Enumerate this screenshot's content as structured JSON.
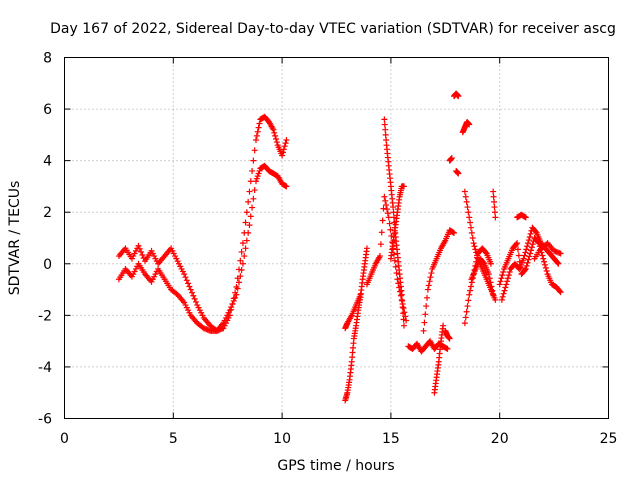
{
  "chart_data": {
    "type": "scatter",
    "title": "Day 167 of 2022, Sidereal Day-to-day VTEC variation (SDTVAR) for receiver ascg",
    "xlabel": "GPS time / hours",
    "ylabel": "SDTVAR / TECUs",
    "xlim": [
      0,
      25
    ],
    "ylim": [
      -6,
      8
    ],
    "xticks": [
      0,
      5,
      10,
      15,
      20,
      25
    ],
    "yticks": [
      -6,
      -4,
      -2,
      0,
      2,
      4,
      6,
      8
    ],
    "xtick_labels": [
      "0",
      "5",
      "10",
      "15",
      "20",
      "25"
    ],
    "ytick_labels": [
      "-6",
      "-4",
      "-2",
      "0",
      "2",
      "4",
      "6",
      "8"
    ],
    "grid": true,
    "marker": "+",
    "color": "#ff0000",
    "series": [
      {
        "name": "segment-1-upper",
        "x": [
          2.5,
          2.8,
          3.1,
          3.4,
          3.7,
          4.0,
          4.3,
          4.6,
          4.9,
          5.2,
          5.5,
          5.8,
          6.1,
          6.4,
          6.7,
          7.0,
          7.3,
          7.6,
          7.9,
          8.2,
          8.5,
          8.8,
          9.0,
          9.2,
          9.4,
          9.6,
          9.8,
          10.0,
          10.2
        ],
        "y": [
          0.3,
          0.6,
          0.2,
          0.7,
          0.1,
          0.5,
          0.0,
          0.3,
          0.6,
          0.1,
          -0.4,
          -1.0,
          -1.6,
          -2.1,
          -2.4,
          -2.6,
          -2.5,
          -2.0,
          -0.9,
          0.8,
          2.8,
          4.8,
          5.6,
          5.7,
          5.5,
          5.2,
          4.6,
          4.2,
          4.8
        ]
      },
      {
        "name": "segment-1-lower",
        "x": [
          2.5,
          2.8,
          3.1,
          3.4,
          3.7,
          4.0,
          4.3,
          4.6,
          4.9,
          5.2,
          5.5,
          5.8,
          6.1,
          6.4,
          6.7,
          7.0,
          7.3,
          7.6,
          7.9,
          8.2,
          8.5,
          8.8,
          9.0,
          9.2,
          9.4,
          9.6,
          9.8,
          10.0,
          10.2
        ],
        "y": [
          -0.6,
          -0.2,
          -0.5,
          0.0,
          -0.4,
          -0.7,
          -0.2,
          -0.6,
          -1.0,
          -1.2,
          -1.5,
          -2.0,
          -2.3,
          -2.5,
          -2.6,
          -2.6,
          -2.3,
          -1.8,
          -1.2,
          0.0,
          1.5,
          3.2,
          3.7,
          3.8,
          3.6,
          3.5,
          3.4,
          3.1,
          3.0
        ]
      },
      {
        "name": "segment-2a",
        "x": [
          12.9,
          13.0,
          13.1,
          13.2,
          13.3,
          13.4,
          13.5,
          13.6,
          13.7,
          13.8,
          13.9
        ],
        "y": [
          -5.3,
          -5.0,
          -4.5,
          -3.8,
          -2.9,
          -2.4,
          -1.8,
          -1.3,
          -0.6,
          0.0,
          0.6
        ]
      },
      {
        "name": "segment-2b",
        "x": [
          12.9,
          13.0,
          13.2,
          13.4,
          13.6
        ],
        "y": [
          -2.5,
          -2.3,
          -2.0,
          -1.6,
          -1.2
        ]
      },
      {
        "name": "segment-3a",
        "x": [
          13.9,
          14.1,
          14.3,
          14.5,
          14.7,
          14.9,
          15.1,
          15.3,
          15.5,
          15.7
        ],
        "y": [
          -0.8,
          -0.4,
          0.0,
          0.3,
          2.6,
          1.8,
          0.6,
          -0.6,
          -1.4,
          -2.2
        ]
      },
      {
        "name": "segment-3b",
        "x": [
          14.7,
          14.8,
          14.9,
          15.0,
          15.1,
          15.2,
          15.3,
          15.4,
          15.5,
          15.6
        ],
        "y": [
          5.6,
          4.6,
          3.8,
          3.0,
          2.2,
          1.2,
          0.4,
          -0.4,
          -1.2,
          -2.4
        ]
      },
      {
        "name": "segment-3c",
        "x": [
          15.0,
          15.1,
          15.2,
          15.3,
          15.4,
          15.5,
          15.6
        ],
        "y": [
          0.2,
          0.8,
          1.4,
          2.0,
          2.6,
          3.0,
          3.0
        ]
      },
      {
        "name": "segment-4",
        "x": [
          15.8,
          16.0,
          16.2,
          16.4,
          16.6,
          16.8,
          17.0,
          17.2,
          17.4,
          17.6
        ],
        "y": [
          -3.2,
          -3.3,
          -3.1,
          -3.4,
          -3.2,
          -3.0,
          -3.3,
          -3.1,
          -3.2,
          -3.3
        ]
      },
      {
        "name": "segment-5a",
        "x": [
          16.5,
          16.7,
          16.9,
          17.1,
          17.3,
          17.5,
          17.7,
          17.9
        ],
        "y": [
          -2.6,
          -1.0,
          -0.2,
          0.2,
          0.6,
          0.9,
          1.3,
          1.2
        ]
      },
      {
        "name": "segment-5b",
        "x": [
          17.0,
          17.1,
          17.2,
          17.3,
          17.4
        ],
        "y": [
          -5.0,
          -4.4,
          -3.8,
          -3.0,
          -2.4
        ]
      },
      {
        "name": "segment-5c",
        "x": [
          17.7,
          17.8
        ],
        "y": [
          4.0,
          4.1
        ]
      },
      {
        "name": "segment-5d",
        "x": [
          17.5,
          17.6,
          17.7
        ],
        "y": [
          -2.6,
          -2.8,
          -2.9
        ]
      },
      {
        "name": "segment-6a",
        "x": [
          17.9,
          18.0,
          18.1
        ],
        "y": [
          6.5,
          6.6,
          6.5
        ]
      },
      {
        "name": "segment-6b",
        "x": [
          18.0,
          18.1
        ],
        "y": [
          3.6,
          3.5
        ]
      },
      {
        "name": "segment-6c",
        "x": [
          18.3,
          18.4,
          18.5,
          18.6
        ],
        "y": [
          5.1,
          5.3,
          5.5,
          5.4
        ]
      },
      {
        "name": "segment-7a",
        "x": [
          18.4,
          18.6,
          18.8,
          19.0,
          19.2,
          19.4,
          19.6,
          19.8
        ],
        "y": [
          2.8,
          1.8,
          0.8,
          0.2,
          -0.2,
          -0.6,
          -1.0,
          -1.4
        ]
      },
      {
        "name": "segment-7b",
        "x": [
          18.4,
          18.6,
          18.8,
          19.0,
          19.2,
          19.4,
          19.6
        ],
        "y": [
          -2.3,
          -1.2,
          -0.4,
          0.4,
          0.6,
          0.4,
          0.0
        ]
      },
      {
        "name": "segment-7c",
        "x": [
          18.7,
          18.9,
          19.1,
          19.3,
          19.5,
          19.7
        ],
        "y": [
          -0.6,
          -0.2,
          0.2,
          0.0,
          -0.4,
          -1.2
        ]
      },
      {
        "name": "segment-7d",
        "x": [
          19.7,
          19.8
        ],
        "y": [
          2.8,
          1.8
        ]
      },
      {
        "name": "segment-8",
        "x": [
          20.0,
          20.2,
          20.4,
          20.6,
          20.8,
          21.0,
          21.2,
          21.4,
          21.6,
          21.8,
          22.0,
          22.2,
          22.4,
          22.6,
          22.8
        ],
        "y": [
          -0.8,
          -0.2,
          0.2,
          0.6,
          0.8,
          -0.4,
          -0.2,
          0.4,
          1.0,
          0.8,
          0.2,
          -0.4,
          -0.8,
          -0.9,
          -1.1
        ]
      },
      {
        "name": "segment-8b",
        "x": [
          20.1,
          20.3,
          20.5,
          20.7,
          20.9,
          21.1,
          21.3,
          21.5,
          21.7,
          21.9,
          22.1,
          22.3,
          22.5,
          22.7
        ],
        "y": [
          -1.4,
          -0.8,
          -0.2,
          0.0,
          -0.2,
          0.2,
          0.8,
          1.4,
          1.2,
          0.8,
          0.6,
          0.4,
          0.2,
          0.0
        ]
      },
      {
        "name": "segment-8c",
        "x": [
          20.8,
          21.0,
          21.2
        ],
        "y": [
          1.8,
          1.9,
          1.8
        ]
      },
      {
        "name": "segment-8d",
        "x": [
          21.6,
          21.9,
          22.2,
          22.5,
          22.8
        ],
        "y": [
          0.2,
          0.6,
          0.8,
          0.5,
          0.4
        ]
      }
    ]
  }
}
